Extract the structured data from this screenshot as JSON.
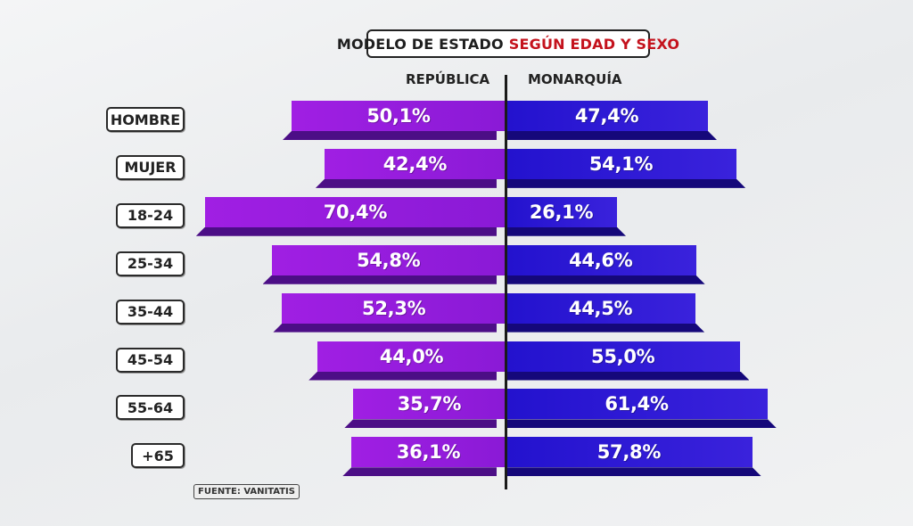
{
  "title": {
    "main": "MODELO DE ESTADO",
    "accent": "SEGÚN EDAD Y SEXO"
  },
  "source": "FUENTE: VANITATIS",
  "colors": {
    "republica": "#9b1fe0",
    "monarquia": "#2a16d4",
    "accent_text": "#c4121c"
  },
  "chart_data": {
    "type": "bar",
    "orientation": "horizontal-diverging",
    "categories": [
      "HOMBRE",
      "MUJER",
      "18-24",
      "25-34",
      "35-44",
      "45-54",
      "55-64",
      "+65"
    ],
    "series": [
      {
        "name": "REPÚBLICA",
        "values": [
          50.1,
          42.4,
          70.4,
          54.8,
          52.3,
          44.0,
          35.7,
          36.1
        ],
        "labels": [
          "50,1%",
          "42,4%",
          "70,4%",
          "54,8%",
          "52,3%",
          "44,0%",
          "35,7%",
          "36,1%"
        ]
      },
      {
        "name": "MONARQUÍA",
        "values": [
          47.4,
          54.1,
          26.1,
          44.6,
          44.5,
          55.0,
          61.4,
          57.8
        ],
        "labels": [
          "47,4%",
          "54,1%",
          "26,1%",
          "44,6%",
          "44,5%",
          "55,0%",
          "61,4%",
          "57,8%"
        ]
      }
    ],
    "title": "MODELO DE ESTADO SEGÚN EDAD Y SEXO",
    "legend": "column headers at top",
    "grid": false
  }
}
